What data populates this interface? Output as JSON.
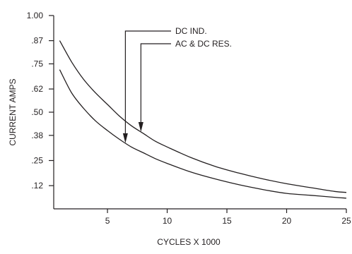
{
  "chart_data": {
    "type": "line",
    "title": "",
    "xlabel": "CYCLES X 1000",
    "ylabel": "CURRENT AMPS",
    "xlim": [
      0.5,
      25
    ],
    "ylim": [
      0,
      1.0
    ],
    "x_ticks": [
      5,
      10,
      15,
      20,
      25
    ],
    "y_ticks": [
      {
        "value": 1.0,
        "label": "1.00"
      },
      {
        "value": 0.87,
        "label": ".87"
      },
      {
        "value": 0.75,
        "label": ".75"
      },
      {
        "value": 0.62,
        "label": ".62"
      },
      {
        "value": 0.5,
        "label": ".50"
      },
      {
        "value": 0.38,
        "label": ".38"
      },
      {
        "value": 0.25,
        "label": ".25"
      },
      {
        "value": 0.12,
        "label": ".12"
      }
    ],
    "grid": false,
    "legend": "none",
    "series": [
      {
        "name": "AC & DC RES.",
        "x": [
          1,
          2,
          3,
          4,
          5,
          6,
          7,
          8,
          9,
          10,
          12,
          14,
          16,
          18,
          20,
          22,
          24,
          25
        ],
        "y": [
          0.87,
          0.76,
          0.67,
          0.6,
          0.54,
          0.48,
          0.43,
          0.39,
          0.35,
          0.32,
          0.265,
          0.22,
          0.185,
          0.155,
          0.13,
          0.11,
          0.09,
          0.085
        ]
      },
      {
        "name": "DC IND.",
        "x": [
          1,
          2,
          3,
          4,
          5,
          6,
          7,
          8,
          9,
          10,
          12,
          14,
          16,
          18,
          20,
          22,
          24,
          25
        ],
        "y": [
          0.72,
          0.6,
          0.52,
          0.455,
          0.405,
          0.36,
          0.32,
          0.29,
          0.26,
          0.235,
          0.19,
          0.155,
          0.125,
          0.1,
          0.08,
          0.07,
          0.06,
          0.055
        ]
      }
    ],
    "annotations": [
      {
        "text": "DC IND.",
        "series": "DC IND.",
        "x": 6.5
      },
      {
        "text": "AC & DC RES.",
        "series": "AC & DC RES.",
        "x": 7.8
      }
    ],
    "colors": {
      "ink": "#231f20"
    }
  }
}
